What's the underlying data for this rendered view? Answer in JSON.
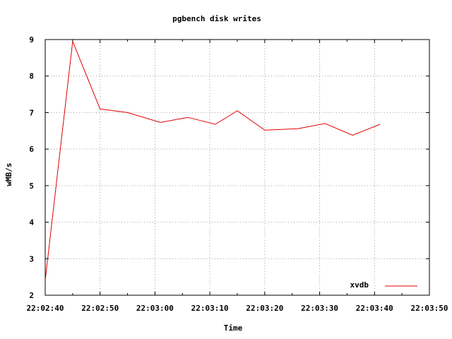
{
  "chart_data": {
    "type": "line",
    "title": "pgbench disk writes",
    "xlabel": "Time",
    "ylabel": "wMB/s",
    "xlim": [
      "22:02:40",
      "22:03:50"
    ],
    "ylim": [
      2,
      9
    ],
    "x_ticks": [
      "22:02:40",
      "22:02:50",
      "22:03:00",
      "22:03:10",
      "22:03:20",
      "22:03:30",
      "22:03:40",
      "22:03:50"
    ],
    "y_ticks": [
      "2",
      "3",
      "4",
      "5",
      "6",
      "7",
      "8",
      "9"
    ],
    "grid": true,
    "legend_position": "bottom-right",
    "series": [
      {
        "name": "xvdb",
        "color": "#e00000",
        "x": [
          "22:02:40",
          "22:02:45",
          "22:02:50",
          "22:02:55",
          "22:03:01",
          "22:03:06",
          "22:03:11",
          "22:03:15",
          "22:03:20",
          "22:03:26",
          "22:03:31",
          "22:03:36",
          "22:03:41"
        ],
        "values": [
          2.4,
          8.95,
          7.1,
          7.0,
          6.73,
          6.87,
          6.68,
          7.05,
          6.52,
          6.56,
          6.7,
          6.38,
          6.68
        ]
      }
    ]
  }
}
